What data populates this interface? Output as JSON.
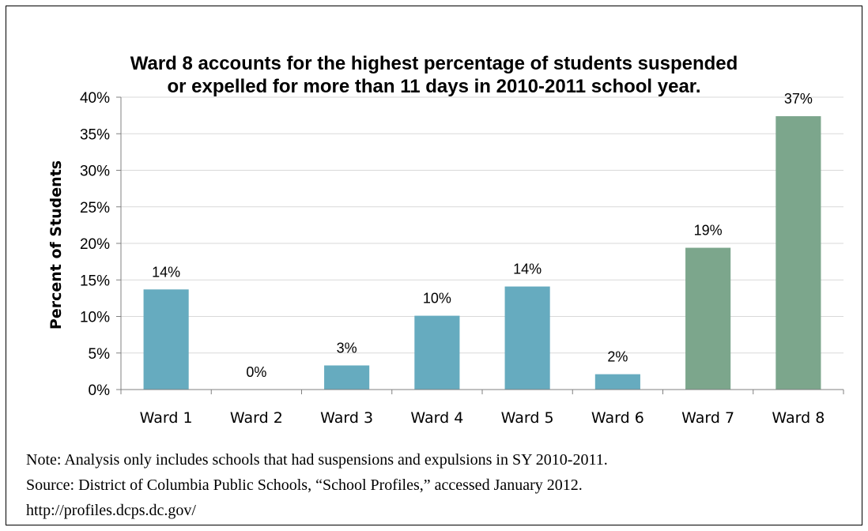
{
  "chart_data": {
    "type": "bar",
    "title_lines": [
      "Ward 8 accounts for the highest percentage of students suspended",
      "or expelled for more than 11 days in 2010-2011 school year."
    ],
    "ylabel": "Percent of Students",
    "xlabel": "",
    "categories": [
      "Ward 1",
      "Ward 2",
      "Ward 3",
      "Ward 4",
      "Ward 5",
      "Ward 6",
      "Ward 7",
      "Ward 8"
    ],
    "values": [
      13.7,
      0,
      3.3,
      10.1,
      14.1,
      2.1,
      19.4,
      37.4
    ],
    "data_labels": [
      "14%",
      "0%",
      "3%",
      "10%",
      "14%",
      "2%",
      "19%",
      "37%"
    ],
    "bar_colors": [
      "#66abbf",
      "#66abbf",
      "#66abbf",
      "#66abbf",
      "#66abbf",
      "#66abbf",
      "#7ca68c",
      "#7ca68c"
    ],
    "ylim": [
      0,
      40
    ],
    "yticks": [
      0,
      5,
      10,
      15,
      20,
      25,
      30,
      35,
      40
    ],
    "ytick_labels": [
      "0%",
      "5%",
      "10%",
      "15%",
      "20%",
      "25%",
      "30%",
      "35%",
      "40%"
    ],
    "grid": true,
    "gridline_color": "#d9d9d9",
    "legend": "none"
  },
  "notes": {
    "note": "Note: Analysis only includes schools that had suspensions and expulsions in SY 2010-2011.",
    "source": "Source: District of Columbia Public Schools, “School Profiles,” accessed January 2012.",
    "url": "http://profiles.dcps.dc.gov/"
  }
}
